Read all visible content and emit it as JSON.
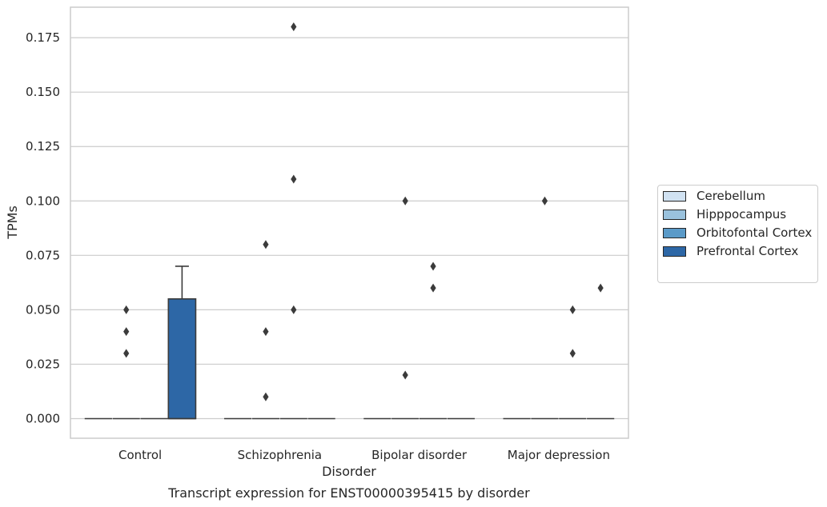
{
  "chart_data": {
    "type": "box",
    "title": "Transcript expression for ENST00000395415 by disorder",
    "xlabel": "Disorder",
    "ylabel": "TPMs",
    "ylim": [
      -0.009,
      0.189
    ],
    "yticks": [
      0.0,
      0.025,
      0.05,
      0.075,
      0.1,
      0.125,
      0.15,
      0.175
    ],
    "ytick_labels": [
      "0.000",
      "0.025",
      "0.050",
      "0.075",
      "0.100",
      "0.125",
      "0.150",
      "0.175"
    ],
    "categories": [
      "Control",
      "Schizophrenia",
      "Bipolar disorder",
      "Major depression"
    ],
    "grid": "horizontal",
    "legend_position": "right",
    "series": [
      {
        "name": "Cerebellum",
        "color": "#d1e2f2",
        "boxes": [
          {
            "category": "Control",
            "q1": 0.0,
            "median": 0.0,
            "q3": 0.0,
            "whisker_low": 0.0,
            "whisker_high": 0.0,
            "outliers": []
          },
          {
            "category": "Schizophrenia",
            "q1": 0.0,
            "median": 0.0,
            "q3": 0.0,
            "whisker_low": 0.0,
            "whisker_high": 0.0,
            "outliers": []
          },
          {
            "category": "Bipolar disorder",
            "q1": 0.0,
            "median": 0.0,
            "q3": 0.0,
            "whisker_low": 0.0,
            "whisker_high": 0.0,
            "outliers": []
          },
          {
            "category": "Major depression",
            "q1": 0.0,
            "median": 0.0,
            "q3": 0.0,
            "whisker_low": 0.0,
            "whisker_high": 0.0,
            "outliers": []
          }
        ]
      },
      {
        "name": "Hipppocampus",
        "color": "#9ac2dd",
        "boxes": [
          {
            "category": "Control",
            "q1": 0.0,
            "median": 0.0,
            "q3": 0.0,
            "whisker_low": 0.0,
            "whisker_high": 0.0,
            "outliers": [
              0.03,
              0.04,
              0.05
            ]
          },
          {
            "category": "Schizophrenia",
            "q1": 0.0,
            "median": 0.0,
            "q3": 0.0,
            "whisker_low": 0.0,
            "whisker_high": 0.0,
            "outliers": [
              0.01,
              0.04,
              0.08
            ]
          },
          {
            "category": "Bipolar disorder",
            "q1": 0.0,
            "median": 0.0,
            "q3": 0.0,
            "whisker_low": 0.0,
            "whisker_high": 0.0,
            "outliers": [
              0.02,
              0.1
            ]
          },
          {
            "category": "Major depression",
            "q1": 0.0,
            "median": 0.0,
            "q3": 0.0,
            "whisker_low": 0.0,
            "whisker_high": 0.0,
            "outliers": [
              0.1
            ]
          }
        ]
      },
      {
        "name": "Orbitofontal Cortex",
        "color": "#5a9ac8",
        "boxes": [
          {
            "category": "Control",
            "q1": 0.0,
            "median": 0.0,
            "q3": 0.0,
            "whisker_low": 0.0,
            "whisker_high": 0.0,
            "outliers": []
          },
          {
            "category": "Schizophrenia",
            "q1": 0.0,
            "median": 0.0,
            "q3": 0.0,
            "whisker_low": 0.0,
            "whisker_high": 0.0,
            "outliers": [
              0.05,
              0.11,
              0.18
            ]
          },
          {
            "category": "Bipolar disorder",
            "q1": 0.0,
            "median": 0.0,
            "q3": 0.0,
            "whisker_low": 0.0,
            "whisker_high": 0.0,
            "outliers": [
              0.06,
              0.07
            ]
          },
          {
            "category": "Major depression",
            "q1": 0.0,
            "median": 0.0,
            "q3": 0.0,
            "whisker_low": 0.0,
            "whisker_high": 0.0,
            "outliers": [
              0.03,
              0.05
            ]
          }
        ]
      },
      {
        "name": "Prefrontal Cortex",
        "color": "#2d67a6",
        "boxes": [
          {
            "category": "Control",
            "q1": 0.0,
            "median": 0.0,
            "q3": 0.055,
            "whisker_low": 0.0,
            "whisker_high": 0.07,
            "outliers": []
          },
          {
            "category": "Schizophrenia",
            "q1": 0.0,
            "median": 0.0,
            "q3": 0.0,
            "whisker_low": 0.0,
            "whisker_high": 0.0,
            "outliers": []
          },
          {
            "category": "Bipolar disorder",
            "q1": 0.0,
            "median": 0.0,
            "q3": 0.0,
            "whisker_low": 0.0,
            "whisker_high": 0.0,
            "outliers": []
          },
          {
            "category": "Major depression",
            "q1": 0.0,
            "median": 0.0,
            "q3": 0.0,
            "whisker_low": 0.0,
            "whisker_high": 0.0,
            "outliers": [
              0.06
            ]
          }
        ]
      }
    ]
  },
  "colors": {
    "grid": "#cccccc",
    "axes_edge": "#cccccc",
    "line": "#3b3b3b"
  }
}
